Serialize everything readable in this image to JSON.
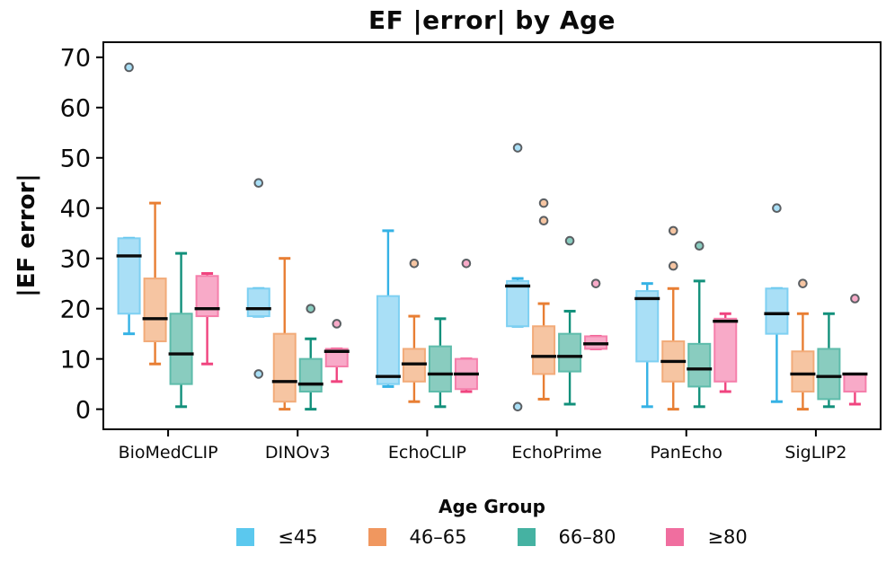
{
  "title": "EF |error| by Age",
  "y_axis": {
    "label": "|EF error|"
  },
  "legend": {
    "title": "Age Group"
  },
  "chart_data": {
    "type": "boxplot",
    "title": "EF |error| by Age",
    "xlabel": "",
    "ylabel": "|EF error|",
    "ylim": [
      -4,
      73
    ],
    "yticks": [
      0,
      10,
      20,
      30,
      40,
      50,
      60,
      70
    ],
    "grid": false,
    "legend_title": "Age Group",
    "legend_position": "bottom",
    "categories": [
      "BioMedCLIP",
      "DINOv3",
      "EchoCLIP",
      "EchoPrime",
      "PanEcho",
      "SigLIP2"
    ],
    "groups": [
      {
        "label": "≤45",
        "color": "#35B2E5",
        "fill": "#A9DFF6",
        "edge": "#7ed0f2",
        "legend_swatch": "#5BC8EE"
      },
      {
        "label": "46–65",
        "color": "#E87E33",
        "fill": "#F6C5A2",
        "edge": "#f2ab79",
        "legend_swatch": "#F0975F"
      },
      {
        "label": "66–80",
        "color": "#12907B",
        "fill": "#89CCBF",
        "edge": "#5ebcab",
        "legend_swatch": "#45B2A2"
      },
      {
        "label": "≥80",
        "color": "#F0447F",
        "fill": "#F8AAC8",
        "edge": "#f57fab",
        "legend_swatch": "#F06E9F"
      }
    ],
    "series": [
      {
        "name": "≤45",
        "boxes": [
          {
            "whislo": 15,
            "q1": 19,
            "med": 30.5,
            "q3": 34,
            "whishi": 34,
            "outliers": [
              68
            ]
          },
          {
            "whislo": 18.5,
            "q1": 18.5,
            "med": 20,
            "q3": 24,
            "whishi": 24,
            "outliers": [
              45,
              7
            ]
          },
          {
            "whislo": 4.5,
            "q1": 5,
            "med": 6.5,
            "q3": 22.5,
            "whishi": 35.5,
            "outliers": []
          },
          {
            "whislo": 16.5,
            "q1": 16.5,
            "med": 24.5,
            "q3": 25.5,
            "whishi": 26,
            "outliers": [
              52,
              0.5
            ]
          },
          {
            "whislo": 0.5,
            "q1": 9.5,
            "med": 22,
            "q3": 23.5,
            "whishi": 25,
            "outliers": []
          },
          {
            "whislo": 1.5,
            "q1": 15,
            "med": 19,
            "q3": 24,
            "whishi": 24,
            "outliers": [
              40
            ]
          }
        ]
      },
      {
        "name": "46–65",
        "boxes": [
          {
            "whislo": 9,
            "q1": 13.5,
            "med": 18,
            "q3": 26,
            "whishi": 41,
            "outliers": []
          },
          {
            "whislo": 0,
            "q1": 1.5,
            "med": 5.5,
            "q3": 15,
            "whishi": 30,
            "outliers": []
          },
          {
            "whislo": 1.5,
            "q1": 5.5,
            "med": 9,
            "q3": 12,
            "whishi": 18.5,
            "outliers": [
              29
            ]
          },
          {
            "whislo": 2,
            "q1": 7,
            "med": 10.5,
            "q3": 16.5,
            "whishi": 21,
            "outliers": [
              41,
              37.5
            ]
          },
          {
            "whislo": 0,
            "q1": 5.5,
            "med": 9.5,
            "q3": 13.5,
            "whishi": 24,
            "outliers": [
              35.5,
              28.5
            ]
          },
          {
            "whislo": 0,
            "q1": 3.5,
            "med": 7,
            "q3": 11.5,
            "whishi": 19,
            "outliers": [
              25
            ]
          }
        ]
      },
      {
        "name": "66–80",
        "boxes": [
          {
            "whislo": 0.5,
            "q1": 5,
            "med": 11,
            "q3": 19,
            "whishi": 31,
            "outliers": []
          },
          {
            "whislo": 0,
            "q1": 3.5,
            "med": 5,
            "q3": 10,
            "whishi": 14,
            "outliers": [
              20
            ]
          },
          {
            "whislo": 0.5,
            "q1": 3.5,
            "med": 7,
            "q3": 12.5,
            "whishi": 18,
            "outliers": []
          },
          {
            "whislo": 1,
            "q1": 7.5,
            "med": 10.5,
            "q3": 15,
            "whishi": 19.5,
            "outliers": [
              33.5
            ]
          },
          {
            "whislo": 0.5,
            "q1": 4.5,
            "med": 8,
            "q3": 13,
            "whishi": 25.5,
            "outliers": [
              32.5
            ]
          },
          {
            "whislo": 0.5,
            "q1": 2,
            "med": 6.5,
            "q3": 12,
            "whishi": 19,
            "outliers": []
          }
        ]
      },
      {
        "name": "≥80",
        "boxes": [
          {
            "whislo": 9,
            "q1": 18.5,
            "med": 20,
            "q3": 26.5,
            "whishi": 27,
            "outliers": []
          },
          {
            "whislo": 5.5,
            "q1": 8.5,
            "med": 11.5,
            "q3": 12,
            "whishi": 12,
            "outliers": [
              17
            ]
          },
          {
            "whislo": 3.5,
            "q1": 4,
            "med": 7,
            "q3": 10,
            "whishi": 10,
            "outliers": [
              29
            ]
          },
          {
            "whislo": 12,
            "q1": 12,
            "med": 13,
            "q3": 14.5,
            "whishi": 14.5,
            "outliers": [
              25
            ]
          },
          {
            "whislo": 3.5,
            "q1": 5.5,
            "med": 17.5,
            "q3": 18,
            "whishi": 19,
            "outliers": []
          },
          {
            "whislo": 1,
            "q1": 3.5,
            "med": 7,
            "q3": 7,
            "whishi": 7,
            "outliers": [
              22
            ]
          }
        ]
      }
    ],
    "style": {
      "median_color": "#0a0a0a",
      "outlier_ring_color": "#5B5F63",
      "axis_color": "#000000"
    }
  }
}
